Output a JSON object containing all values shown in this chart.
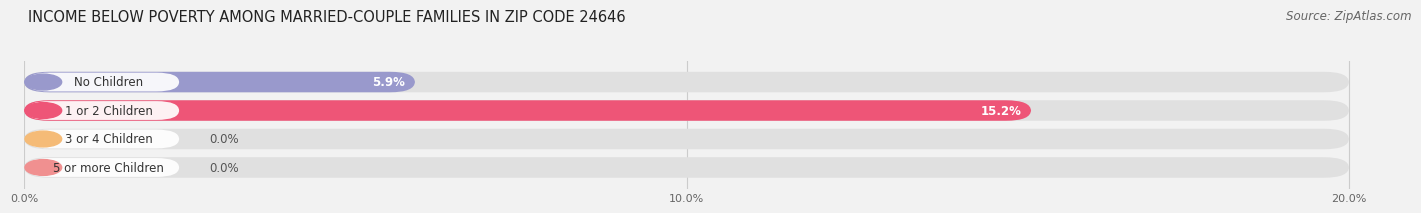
{
  "title": "INCOME BELOW POVERTY AMONG MARRIED-COUPLE FAMILIES IN ZIP CODE 24646",
  "source": "Source: ZipAtlas.com",
  "categories": [
    "No Children",
    "1 or 2 Children",
    "3 or 4 Children",
    "5 or more Children"
  ],
  "values": [
    5.9,
    15.2,
    0.0,
    0.0
  ],
  "bar_colors": [
    "#9999cc",
    "#ee5577",
    "#f5bb77",
    "#f09090"
  ],
  "xlim": [
    0,
    20.8
  ],
  "x_axis_max": 20.0,
  "xtick_labels": [
    "0.0%",
    "10.0%",
    "20.0%"
  ],
  "xtick_positions": [
    0.0,
    10.0,
    20.0
  ],
  "background_color": "#f2f2f2",
  "bar_bg_color": "#e0e0e0",
  "title_fontsize": 10.5,
  "source_fontsize": 8.5,
  "label_fontsize": 8.5,
  "value_fontsize": 8.5,
  "bar_height": 0.72,
  "bar_spacing": 1.0,
  "value_label_color_inside": "#ffffff",
  "value_label_color_outside": "#555555",
  "grid_color": "#cccccc",
  "label_text_color": "#333333"
}
